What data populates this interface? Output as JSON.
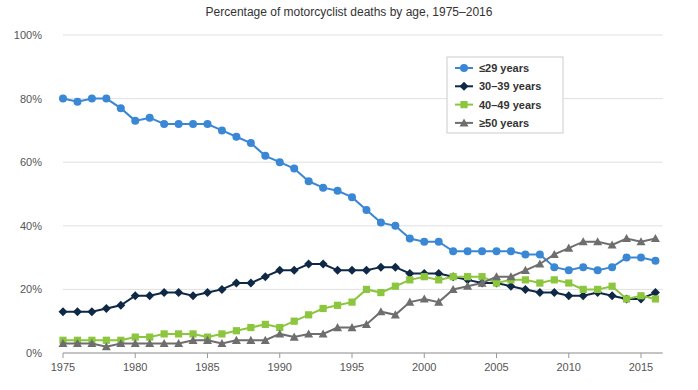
{
  "chart_data": {
    "type": "line",
    "title": "Percentage of motorcyclist deaths by age, 1975–2016",
    "x": [
      1975,
      1976,
      1977,
      1978,
      1979,
      1980,
      1981,
      1982,
      1983,
      1984,
      1985,
      1986,
      1987,
      1988,
      1989,
      1990,
      1991,
      1992,
      1993,
      1994,
      1995,
      1996,
      1997,
      1998,
      1999,
      2000,
      2001,
      2002,
      2003,
      2004,
      2005,
      2006,
      2007,
      2008,
      2009,
      2010,
      2011,
      2012,
      2013,
      2014,
      2015,
      2016
    ],
    "series": [
      {
        "name": "≤29 years",
        "color": "#3a87d6",
        "marker": "circle",
        "line_style": "solid",
        "values": [
          80,
          79,
          80,
          80,
          77,
          73,
          74,
          72,
          72,
          72,
          72,
          70,
          68,
          66,
          62,
          60,
          58,
          54,
          52,
          51,
          49,
          45,
          41,
          40,
          36,
          35,
          35,
          32,
          32,
          32,
          32,
          32,
          31,
          31,
          27,
          26,
          27,
          26,
          27,
          30,
          30,
          29
        ]
      },
      {
        "name": "30–39 years",
        "color": "#0e2846",
        "marker": "diamond",
        "line_style": "solid",
        "values": [
          13,
          13,
          13,
          14,
          15,
          18,
          18,
          19,
          19,
          18,
          19,
          20,
          22,
          22,
          24,
          26,
          26,
          28,
          28,
          26,
          26,
          26,
          27,
          27,
          25,
          25,
          25,
          24,
          23,
          22,
          22,
          21,
          20,
          19,
          19,
          18,
          18,
          19,
          18,
          17,
          17,
          19
        ]
      },
      {
        "name": "40–49 years",
        "color": "#8cc63e",
        "marker": "square",
        "line_style": "solid",
        "values": [
          4,
          4,
          4,
          4,
          4,
          5,
          5,
          6,
          6,
          6,
          5,
          6,
          7,
          8,
          9,
          8,
          10,
          12,
          14,
          15,
          16,
          20,
          19,
          21,
          23,
          24,
          23,
          24,
          24,
          24,
          22,
          23,
          23,
          22,
          23,
          22,
          20,
          20,
          21,
          17,
          18,
          17
        ]
      },
      {
        "name": "≥50 years",
        "color": "#6e6e6e",
        "marker": "triangle",
        "line_style": "solid",
        "values": [
          3,
          3,
          3,
          2,
          3,
          3,
          3,
          3,
          3,
          4,
          4,
          3,
          4,
          4,
          4,
          6,
          5,
          6,
          6,
          8,
          8,
          9,
          13,
          12,
          16,
          17,
          16,
          20,
          21,
          22,
          24,
          24,
          26,
          28,
          31,
          33,
          35,
          35,
          34,
          36,
          35,
          36
        ]
      }
    ],
    "xlim": [
      1975,
      2016.5
    ],
    "xticks": [
      1975,
      1980,
      1985,
      1990,
      1995,
      2000,
      2005,
      2010,
      2015
    ],
    "ylim": [
      0,
      100
    ],
    "yticks": [
      {
        "value": 0,
        "label": "0%"
      },
      {
        "value": 20,
        "label": "20%"
      },
      {
        "value": 40,
        "label": "40%"
      },
      {
        "value": 60,
        "label": "60%"
      },
      {
        "value": 80,
        "label": "80%"
      },
      {
        "value": 100,
        "label": "100%"
      }
    ],
    "grid": true,
    "legend": "top-right"
  }
}
